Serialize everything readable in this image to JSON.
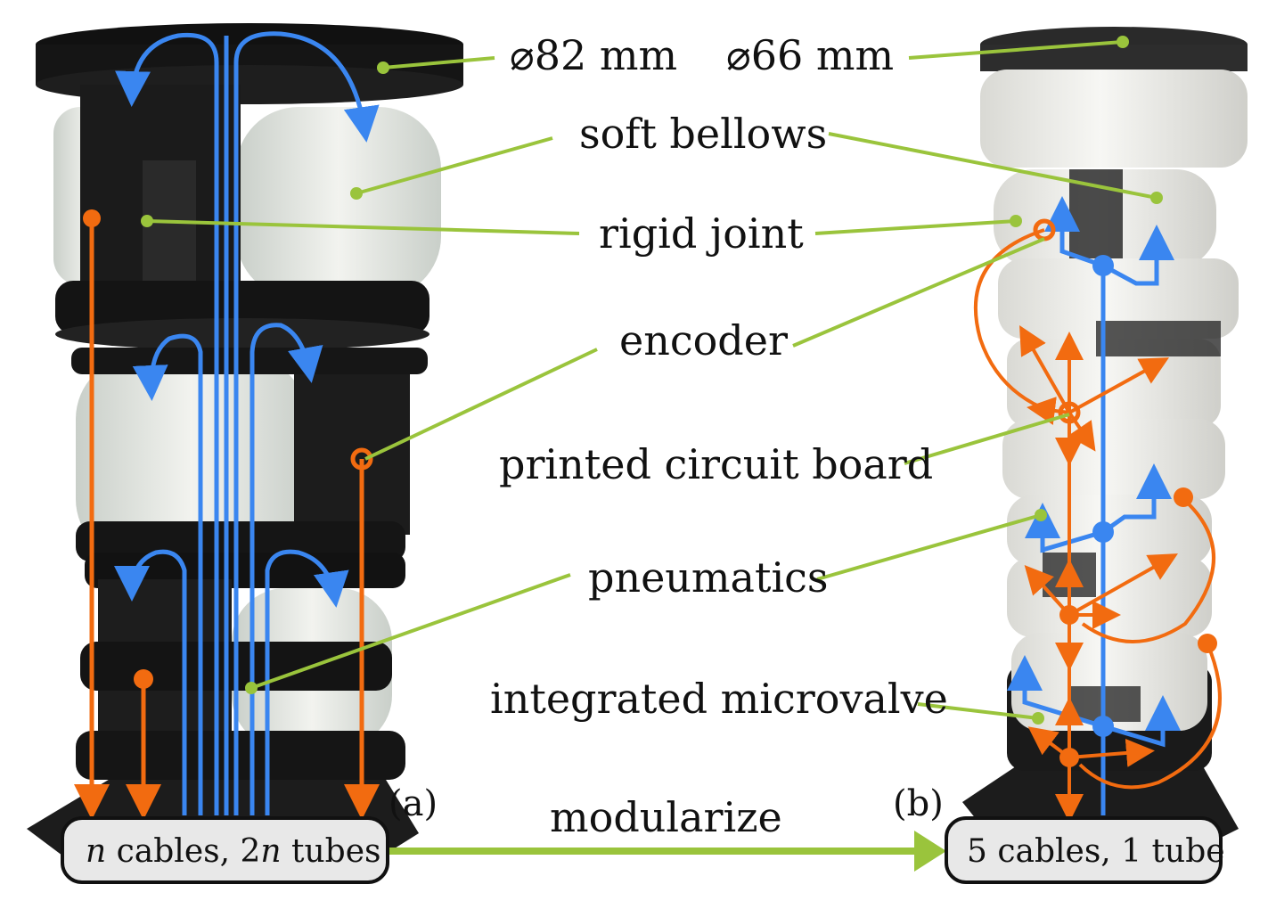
{
  "labels": {
    "dia_left": "⌀82 mm",
    "dia_right": "⌀66 mm",
    "soft_bellows": "soft bellows",
    "rigid_joint": "rigid joint",
    "encoder": "encoder",
    "pcb": "printed circuit board",
    "pneumatics": "pneumatics",
    "microvalve": "integrated microvalve",
    "modularize": "modularize"
  },
  "panels": {
    "a": "(a)",
    "b": "(b)"
  },
  "boxes": {
    "left_var": "n",
    "left_mid": " cables, ",
    "left_num": "2",
    "left_var2": "n",
    "left_end": " tubes",
    "right": "5 cables, 1 tube"
  },
  "colors": {
    "cable": "#f26b10",
    "tube": "#3a86f0",
    "leader": "#9ac43c",
    "arrow": "#9ac43c"
  }
}
